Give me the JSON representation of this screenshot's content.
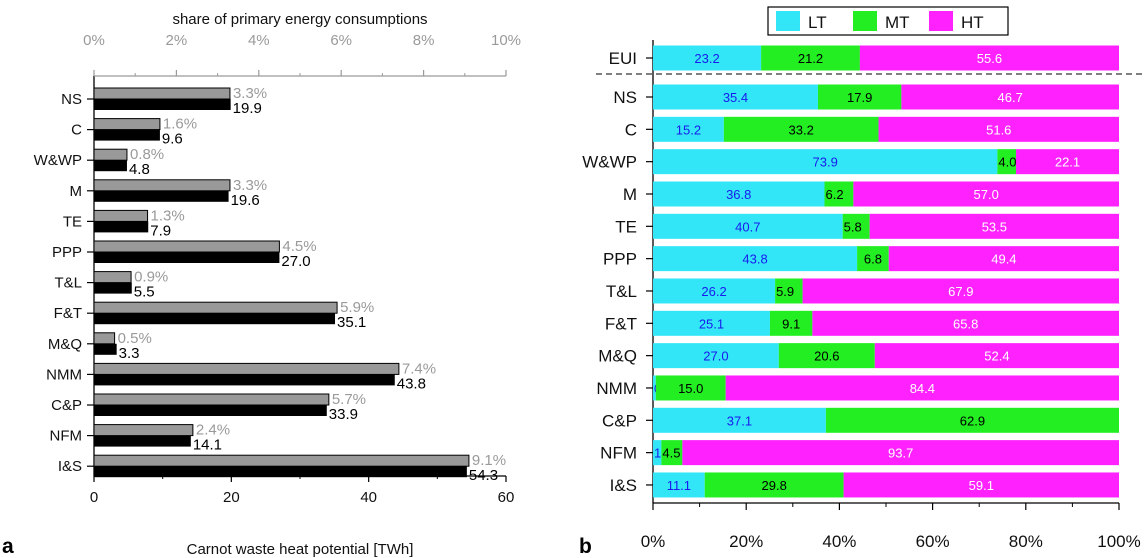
{
  "chart_data": [
    {
      "panel": "a",
      "type": "bar",
      "orientation": "horizontal",
      "categories": [
        "NS",
        "C",
        "W&WP",
        "M",
        "TE",
        "PPP",
        "T&L",
        "F&T",
        "M&Q",
        "NMM",
        "C&P",
        "NFM",
        "I&S"
      ],
      "series": [
        {
          "values": [
            3.3,
            1.6,
            0.8,
            3.3,
            1.3,
            4.5,
            0.9,
            5.9,
            0.5,
            7.4,
            5.7,
            2.4,
            9.1
          ],
          "labels": [
            "3.3%",
            "1.6%",
            "0.8%",
            "3.3%",
            "1.3%",
            "4.5%",
            "0.9%",
            "5.9%",
            "0.5%",
            "7.4%",
            "5.7%",
            "2.4%",
            "9.1%"
          ],
          "color": "#999999",
          "axis": "top"
        },
        {
          "values": [
            19.9,
            9.6,
            4.8,
            19.6,
            7.9,
            27.0,
            5.5,
            35.1,
            3.3,
            43.8,
            33.9,
            14.1,
            54.3
          ],
          "labels": [
            "19.9",
            "9.6",
            "4.8",
            "19.6",
            "7.9",
            "27.0",
            "5.5",
            "35.1",
            "3.3",
            "43.8",
            "33.9",
            "14.1",
            "54.3"
          ],
          "color": "#000000",
          "axis": "bottom"
        }
      ],
      "xlabel_top": "share of primary energy consumptions",
      "xlabel_bottom": "Carnot waste heat potential [TWh]",
      "xlim_top": [
        0,
        10
      ],
      "xlim_bottom": [
        0,
        60
      ],
      "ticks_top": [
        "0%",
        "2%",
        "4%",
        "6%",
        "8%",
        "10%"
      ],
      "ticks_bottom": [
        "0",
        "20",
        "40",
        "60"
      ],
      "grid": false
    },
    {
      "panel": "b",
      "type": "bar",
      "orientation": "horizontal",
      "stacked": true,
      "categories": [
        "EUI",
        "NS",
        "C",
        "W&WP",
        "M",
        "TE",
        "PPP",
        "T&L",
        "F&T",
        "M&Q",
        "NMM",
        "C&P",
        "NFM",
        "I&S"
      ],
      "series": [
        {
          "name": "LT",
          "color": "#33e6f7",
          "values": [
            23.2,
            35.4,
            15.2,
            73.9,
            36.8,
            40.7,
            43.8,
            26.2,
            25.1,
            27.0,
            0.6,
            37.1,
            1.8,
            11.1
          ],
          "labels": [
            "23.2",
            "35.4",
            "15.2",
            "73.9",
            "36.8",
            "40.7",
            "43.8",
            "26.2",
            "25.1",
            "27.0",
            "0.6",
            "37.1",
            "1.8",
            "11.1"
          ]
        },
        {
          "name": "MT",
          "color": "#22ee22",
          "values": [
            21.2,
            17.9,
            33.2,
            4.0,
            6.2,
            5.8,
            6.8,
            5.9,
            9.1,
            20.6,
            15.0,
            62.9,
            4.5,
            29.8
          ],
          "labels": [
            "21.2",
            "17.9",
            "33.2",
            "4.0",
            "6.2",
            "5.8",
            "6.8",
            "5.9",
            "9.1",
            "20.6",
            "15.0",
            "62.9",
            "4.5",
            "29.8"
          ]
        },
        {
          "name": "HT",
          "color": "#ff22ff",
          "values": [
            55.6,
            46.7,
            51.6,
            22.1,
            57.0,
            53.5,
            49.4,
            67.9,
            65.8,
            52.4,
            84.4,
            0,
            93.7,
            59.1
          ],
          "labels": [
            "55.6",
            "46.7",
            "51.6",
            "22.1",
            "57.0",
            "53.5",
            "49.4",
            "67.9",
            "65.8",
            "52.4",
            "84.4",
            "",
            "93.7",
            "59.1"
          ]
        }
      ],
      "xlim": [
        0,
        100
      ],
      "ticks": [
        "0%",
        "20%",
        "40%",
        "60%",
        "80%",
        "100%"
      ],
      "legend": "top-center",
      "grid": false
    }
  ],
  "panel_letters": {
    "a": "a",
    "b": "b"
  }
}
